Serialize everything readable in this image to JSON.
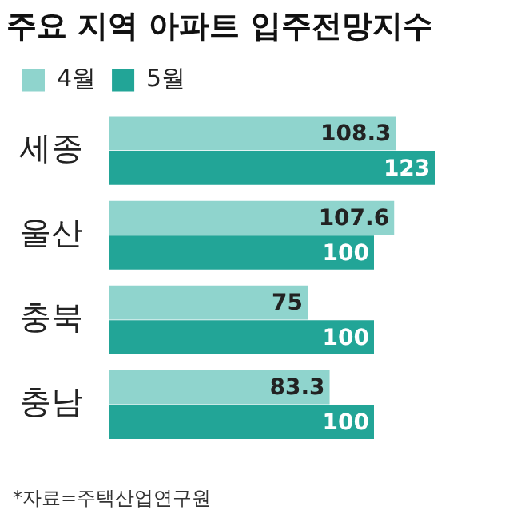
{
  "chart_data": {
    "type": "bar",
    "orientation": "horizontal",
    "title": "주요 지역 아파트 입주전망지수",
    "categories": [
      "세종",
      "울산",
      "충북",
      "충남"
    ],
    "series": [
      {
        "name": "4월",
        "color": "#8fd4cd",
        "values": [
          108.3,
          107.6,
          75,
          83.3
        ]
      },
      {
        "name": "5월",
        "color": "#22a597",
        "values": [
          123,
          100,
          100,
          100
        ]
      }
    ],
    "data_labels": true,
    "legend": "top left",
    "tick_labels": "y",
    "annotations": [
      "*자료=주택산업연구원"
    ]
  }
}
